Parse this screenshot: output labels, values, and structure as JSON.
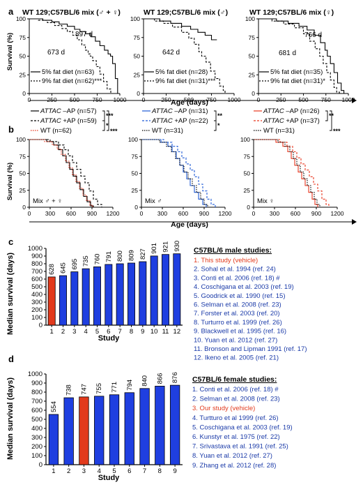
{
  "panels": {
    "a": {
      "letter": "a",
      "xlabel": "Age (days)",
      "ylabel": "Survival (%)",
      "xticks": [
        "0",
        "250",
        "500",
        "750",
        "1000"
      ],
      "yticks": [
        "0",
        "25",
        "50",
        "75",
        "100"
      ],
      "plots": [
        {
          "title": "WT 129;C57BL/6 mix (♂ + ♀)",
          "median_5": "897 d",
          "median_9": "673 d",
          "legend": [
            "5% fat diet (n=63)",
            "9% fat diet (n=62)***"
          ]
        },
        {
          "title": "WT 129;C57BL/6 mix (♂)",
          "median_5": "",
          "median_9": "642 d",
          "legend": [
            "5% fat diet (n=28)",
            "9% fat diet (n=31)***"
          ]
        },
        {
          "title": "WT 129;C57BL/6 mix (♀)",
          "median_5": "766 d",
          "median_9": "681 d",
          "legend": [
            "5% fat diet (n=35)",
            "9% fat diet (n=31)*"
          ]
        }
      ]
    },
    "b": {
      "letter": "b",
      "xlabel": "Age (days)",
      "ylabel": "Survival (%)",
      "xticks": [
        "0",
        "300",
        "600",
        "900",
        "1200"
      ],
      "yticks": [
        "0",
        "25",
        "50",
        "75",
        "100"
      ],
      "plots": [
        {
          "label": "Mix ♂ + ♀",
          "color": "#000000",
          "legend": [
            {
              "name": "ATTAC",
              "rest": " –AP (n=57)"
            },
            {
              "name": "ATTAC",
              "rest": " +AP (n=59)"
            },
            {
              "name": "",
              "rest": "WT (n=62)"
            }
          ],
          "stars": [
            "***",
            "*",
            "***"
          ]
        },
        {
          "label": "Mix ♂",
          "color": "#1f5bd6",
          "legend": [
            {
              "name": "ATTAC",
              "rest": " –AP (n=31)"
            },
            {
              "name": "ATTAC",
              "rest": " +AP (n=22)"
            },
            {
              "name": "",
              "rest": "WT (n=31)"
            }
          ],
          "stars": [
            "**",
            "*",
            ""
          ]
        },
        {
          "label": "Mix ♀",
          "color": "#e8371f",
          "legend": [
            {
              "name": "ATTAC",
              "rest": " –AP (n=26)"
            },
            {
              "name": "ATTAC",
              "rest": " +AP (n=37)"
            },
            {
              "name": "",
              "rest": "WT (n=31)"
            }
          ],
          "stars": [
            "**",
            "",
            "***"
          ]
        }
      ]
    },
    "c": {
      "letter": "c",
      "ylabel": "Median survival (days)",
      "xlabel": "Study",
      "list_title": "C57BL/6 male studies:",
      "list": [
        "1. This study (vehicle)",
        "2. Sohal et al. 1994 (ref. 24)",
        "3. Conti et al. 2006  (ref. 18) #",
        "4. Coschigana et al. 2003 (ref. 19)",
        "5. Goodrick et al. 1990 (ref. 15)",
        "6. Selman et al. 2008 (ref. 23)",
        "7. Forster et al. 2003 (ref. 20)",
        "8. Turturro et al. 1999 (ref. 26)",
        "9. Blackwell et al. 1995 (ref. 16)",
        "10. Yuan et al. 2012 (ref. 27)",
        "11. Bronson and Lipman 1991 (ref. 17)",
        "12. Ikeno et al. 2005 (ref. 21)"
      ]
    },
    "d": {
      "letter": "d",
      "ylabel": "Median survival (days)",
      "xlabel": "Study",
      "list_title": "C57BL/6 female studies:",
      "list": [
        "1. Conti et al. 2006 (ref. 18) #",
        "2. Selman et al. 2008 (ref. 23)",
        "3. Our study (vehicle)",
        "4. Turtturo et al 1999  (ref. 26)",
        "5. Coschigana et al. 2003 (ref. 19)",
        "6. Kunstyr et al. 1975 (ref. 22)",
        "7. Srivastava et al. 1991 (ref. 25)",
        "8. Yuan et al. 2012 (ref. 27)",
        "9. Zhang et al. 2012 (ref. 28)"
      ]
    }
  },
  "chart_data": [
    {
      "type": "line",
      "panel": "a1",
      "title": "WT 129;C57BL/6 mix (♂ + ♀)",
      "xlabel": "Age (days)",
      "ylabel": "Survival (%)",
      "xlim": [
        0,
        1000
      ],
      "ylim": [
        0,
        100
      ],
      "series": [
        {
          "name": "5% fat diet (n=63)",
          "style": "solid",
          "x": [
            0,
            150,
            250,
            330,
            420,
            500,
            560,
            620,
            680,
            730,
            780,
            830,
            870,
            897,
            920,
            950,
            975
          ],
          "y": [
            100,
            98,
            96,
            93,
            90,
            86,
            83,
            80,
            76,
            70,
            64,
            58,
            53,
            50,
            40,
            20,
            0
          ]
        },
        {
          "name": "9% fat diet (n=62)***",
          "style": "dashed",
          "x": [
            0,
            100,
            200,
            280,
            360,
            420,
            480,
            530,
            580,
            620,
            650,
            673,
            700,
            740,
            780,
            820,
            860,
            900
          ],
          "y": [
            100,
            98,
            95,
            91,
            87,
            83,
            78,
            72,
            65,
            58,
            53,
            50,
            44,
            36,
            26,
            16,
            6,
            0
          ]
        }
      ]
    },
    {
      "type": "line",
      "panel": "a2",
      "title": "WT 129;C57BL/6 mix (♂)",
      "xlabel": "Age (days)",
      "ylabel": "Survival (%)",
      "xlim": [
        0,
        1000
      ],
      "ylim": [
        0,
        100
      ],
      "series": [
        {
          "name": "5% fat diet (n=28)",
          "style": "solid",
          "x": [
            0,
            180,
            300,
            420,
            520,
            600,
            680,
            750,
            810
          ],
          "y": [
            100,
            97,
            94,
            90,
            86,
            82,
            78,
            72,
            72
          ]
        },
        {
          "name": "9% fat diet (n=31)***",
          "style": "dashed",
          "x": [
            0,
            120,
            220,
            320,
            420,
            500,
            560,
            610,
            642,
            690,
            740,
            790,
            840,
            880,
            900
          ],
          "y": [
            100,
            97,
            94,
            89,
            82,
            74,
            66,
            56,
            50,
            42,
            30,
            20,
            10,
            4,
            0
          ]
        }
      ]
    },
    {
      "type": "line",
      "panel": "a3",
      "title": "WT 129;C57BL/6 mix (♀)",
      "xlabel": "Age (days)",
      "ylabel": "Survival (%)",
      "xlim": [
        0,
        1000
      ],
      "ylim": [
        0,
        100
      ],
      "series": [
        {
          "name": "5% fat diet (n=35)",
          "style": "solid",
          "x": [
            0,
            200,
            330,
            450,
            540,
            620,
            690,
            740,
            766,
            800,
            840,
            880,
            920,
            950
          ],
          "y": [
            100,
            97,
            94,
            90,
            85,
            78,
            68,
            58,
            50,
            40,
            28,
            14,
            4,
            0
          ]
        },
        {
          "name": "9% fat diet (n=31)*",
          "style": "dashed",
          "x": [
            0,
            150,
            280,
            400,
            500,
            570,
            630,
            681,
            720,
            760,
            800,
            840,
            870,
            900
          ],
          "y": [
            100,
            97,
            93,
            88,
            80,
            70,
            60,
            50,
            40,
            28,
            18,
            8,
            2,
            0
          ]
        }
      ]
    },
    {
      "type": "line",
      "panel": "b1",
      "xlabel": "Age (days)",
      "ylabel": "Survival (%)",
      "xlim": [
        0,
        1200
      ],
      "ylim": [
        0,
        100
      ],
      "series": [
        {
          "name": "ATTAC –AP (n=57)",
          "style": "solid",
          "color": "#000000",
          "x": [
            0,
            250,
            350,
            420,
            480,
            530,
            580,
            630,
            680,
            730,
            780,
            830,
            880,
            920
          ],
          "y": [
            100,
            97,
            92,
            85,
            76,
            66,
            56,
            46,
            36,
            26,
            16,
            8,
            2,
            0
          ]
        },
        {
          "name": "ATTAC +AP (n=59)",
          "style": "dashed",
          "color": "#000000",
          "x": [
            0,
            300,
            420,
            500,
            560,
            620,
            680,
            740,
            800,
            860,
            920,
            980,
            1040
          ],
          "y": [
            100,
            97,
            92,
            85,
            76,
            66,
            56,
            46,
            36,
            24,
            12,
            4,
            0
          ]
        },
        {
          "name": "WT (n=62)",
          "style": "dotted",
          "color": "#e8371f",
          "x": [
            0,
            220,
            330,
            400,
            460,
            520,
            570,
            620,
            670,
            720,
            770,
            820,
            870,
            910
          ],
          "y": [
            100,
            97,
            92,
            86,
            78,
            68,
            58,
            48,
            38,
            28,
            18,
            10,
            3,
            0
          ]
        }
      ]
    },
    {
      "type": "line",
      "panel": "b2",
      "xlabel": "Age (days)",
      "ylabel": "Survival (%)",
      "xlim": [
        0,
        1200
      ],
      "ylim": [
        0,
        100
      ],
      "series": [
        {
          "name": "ATTAC –AP (n=31)",
          "style": "solid",
          "color": "#1f5bd6",
          "x": [
            0,
            280,
            380,
            440,
            500,
            550,
            600,
            650,
            700,
            760,
            820,
            880,
            930
          ],
          "y": [
            100,
            96,
            90,
            82,
            72,
            62,
            52,
            42,
            32,
            22,
            12,
            4,
            0
          ]
        },
        {
          "name": "ATTAC +AP (n=22)",
          "style": "dashed",
          "color": "#1f5bd6",
          "x": [
            0,
            320,
            440,
            520,
            580,
            640,
            700,
            760,
            820,
            880,
            940,
            1000,
            1060
          ],
          "y": [
            100,
            96,
            90,
            82,
            73,
            64,
            55,
            45,
            34,
            24,
            12,
            4,
            0
          ]
        },
        {
          "name": "WT (n=31)",
          "style": "dotted",
          "color": "#000000",
          "x": [
            0,
            260,
            360,
            430,
            490,
            550,
            610,
            670,
            730,
            790,
            850,
            900,
            950
          ],
          "y": [
            100,
            96,
            90,
            82,
            72,
            62,
            52,
            42,
            32,
            22,
            12,
            4,
            0
          ]
        }
      ]
    },
    {
      "type": "line",
      "panel": "b3",
      "xlabel": "Age (days)",
      "ylabel": "Survival (%)",
      "xlim": [
        0,
        1200
      ],
      "ylim": [
        0,
        100
      ],
      "series": [
        {
          "name": "ATTAC –AP (n=26)",
          "style": "solid",
          "color": "#e8371f",
          "x": [
            0,
            320,
            420,
            490,
            540,
            590,
            640,
            690,
            740,
            790,
            840,
            880,
            920
          ],
          "y": [
            100,
            96,
            90,
            82,
            72,
            62,
            52,
            42,
            32,
            22,
            12,
            4,
            0
          ]
        },
        {
          "name": "ATTAC +AP (n=37)",
          "style": "dashed",
          "color": "#e8371f",
          "x": [
            0,
            380,
            480,
            560,
            620,
            680,
            740,
            800,
            860,
            920,
            980,
            1040,
            1080
          ],
          "y": [
            100,
            96,
            90,
            82,
            73,
            64,
            55,
            45,
            34,
            24,
            12,
            4,
            0
          ]
        },
        {
          "name": "WT (n=31)",
          "style": "dotted",
          "color": "#000000",
          "x": [
            0,
            350,
            450,
            520,
            570,
            620,
            670,
            720,
            770,
            820,
            870,
            910,
            950
          ],
          "y": [
            100,
            96,
            90,
            82,
            72,
            62,
            52,
            42,
            32,
            22,
            12,
            4,
            0
          ]
        }
      ]
    },
    {
      "type": "bar",
      "panel": "c",
      "xlabel": "Study",
      "ylabel": "Median survival (days)",
      "categories": [
        "1",
        "2",
        "3",
        "4",
        "5",
        "6",
        "7",
        "8",
        "9",
        "10",
        "11",
        "12"
      ],
      "values": [
        628,
        645,
        695,
        735,
        760,
        791,
        800,
        809,
        827,
        901,
        921,
        930
      ],
      "highlight_index": 0,
      "ylim": [
        0,
        1000
      ],
      "yticks": [
        0,
        100,
        200,
        300,
        400,
        500,
        600,
        700,
        800,
        900,
        1000
      ]
    },
    {
      "type": "bar",
      "panel": "d",
      "xlabel": "Study",
      "ylabel": "Median survival (days)",
      "categories": [
        "1",
        "2",
        "3",
        "4",
        "5",
        "6",
        "7",
        "8",
        "9"
      ],
      "values": [
        554,
        738,
        747,
        755,
        771,
        794,
        840,
        866,
        876
      ],
      "highlight_index": 2,
      "ylim": [
        0,
        1000
      ],
      "yticks": [
        0,
        100,
        200,
        300,
        400,
        500,
        600,
        700,
        800,
        900,
        1000
      ]
    }
  ],
  "colors": {
    "bar": "#1f3fe0",
    "highlight": "#e23a1c",
    "black": "#000000",
    "blue": "#1f5bd6",
    "red": "#e8371f",
    "list_blue": "#1a3aa8"
  }
}
